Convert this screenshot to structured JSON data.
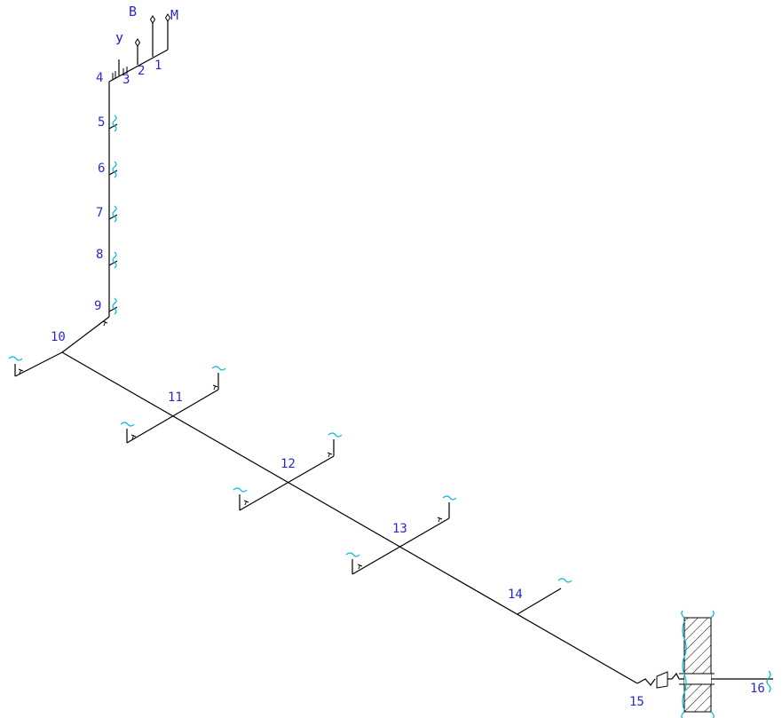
{
  "colors": {
    "pipe": "#000000",
    "label": "#2a2ad0",
    "break_mark": "#00bcd4"
  },
  "riser_labels": {
    "v": "В",
    "m": "М",
    "u": "У"
  },
  "nodes": [
    "1",
    "2",
    "3",
    "4",
    "5",
    "6",
    "7",
    "8",
    "9",
    "10",
    "11",
    "12",
    "13",
    "14",
    "15",
    "16"
  ]
}
